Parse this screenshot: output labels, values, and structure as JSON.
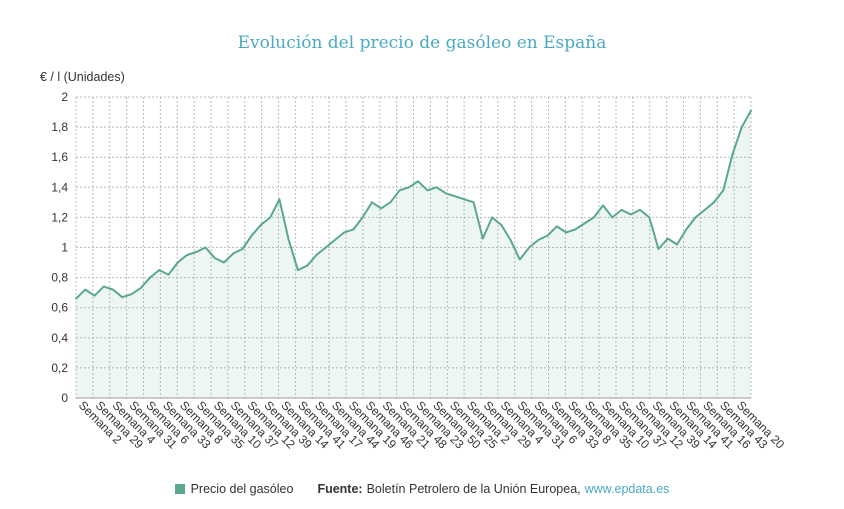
{
  "chart_data": {
    "type": "area",
    "title": "Evolución del precio de gasóleo en España",
    "ylabel": "€ / l (Unidades)",
    "xlabel": "",
    "ylim": [
      0,
      2
    ],
    "yticks": [
      0,
      0.2,
      0.4,
      0.6,
      0.8,
      1,
      1.2,
      1.4,
      1.6,
      1.8,
      2
    ],
    "ytick_labels": [
      "0",
      "0,2",
      "0,4",
      "0,6",
      "0,8",
      "1",
      "1,2",
      "1,4",
      "1,6",
      "1,8",
      "2"
    ],
    "grid": true,
    "x_tick_labels": [
      "Semana 2",
      "Semana 29",
      "Semana 4",
      "Semana 31",
      "Semana 6",
      "Semana 33",
      "Semana 8",
      "Semana 35",
      "Semana 10",
      "Semana 37",
      "Semana 12",
      "Semana 39",
      "Semana 14",
      "Semana 41",
      "Semana 17",
      "Semana 44",
      "Semana 19",
      "Semana 46",
      "Semana 21",
      "Semana 48",
      "Semana 23",
      "Semana 50",
      "Semana 25",
      "Semana 2",
      "Semana 29",
      "Semana 4",
      "Semana 31",
      "Semana 6",
      "Semana 33",
      "Semana 8",
      "Semana 35",
      "Semana 10",
      "Semana 37",
      "Semana 12",
      "Semana 39",
      "Semana 14",
      "Semana 41",
      "Semana 16",
      "Semana 43",
      "Semana 20"
    ],
    "series": [
      {
        "name": "Precio del gasóleo",
        "color": "#5aa88a",
        "values": [
          0.66,
          0.72,
          0.68,
          0.74,
          0.72,
          0.67,
          0.69,
          0.73,
          0.8,
          0.85,
          0.82,
          0.9,
          0.95,
          0.97,
          1.0,
          0.93,
          0.9,
          0.96,
          0.99,
          1.08,
          1.15,
          1.2,
          1.32,
          1.05,
          0.85,
          0.88,
          0.95,
          1.0,
          1.05,
          1.1,
          1.12,
          1.2,
          1.3,
          1.26,
          1.3,
          1.38,
          1.4,
          1.44,
          1.38,
          1.4,
          1.36,
          1.34,
          1.32,
          1.3,
          1.06,
          1.2,
          1.15,
          1.05,
          0.92,
          1.0,
          1.05,
          1.08,
          1.14,
          1.1,
          1.12,
          1.16,
          1.2,
          1.28,
          1.2,
          1.25,
          1.22,
          1.25,
          1.2,
          0.99,
          1.06,
          1.02,
          1.12,
          1.2,
          1.25,
          1.3,
          1.38,
          1.62,
          1.8,
          1.91
        ]
      }
    ]
  },
  "legend": {
    "label": "Precio del gasóleo",
    "color": "#5aa88a"
  },
  "source": {
    "label": "Fuente:",
    "text": "Boletín Petrolero de la Unión Europea,",
    "link": "www.epdata.es"
  }
}
